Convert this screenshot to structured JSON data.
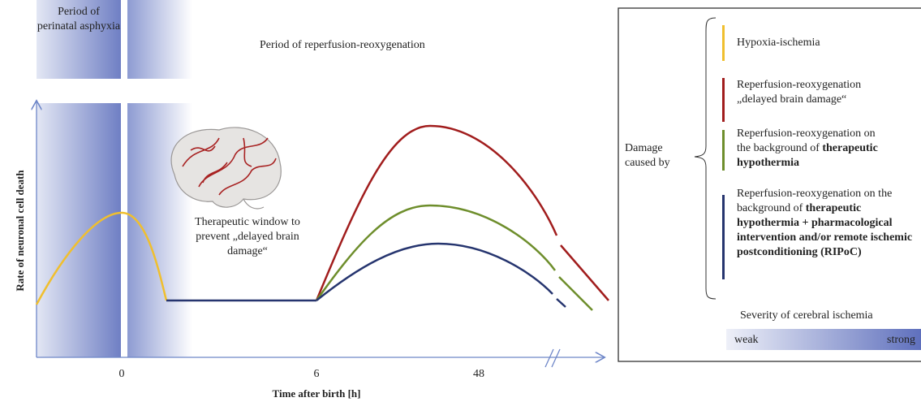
{
  "diagram": {
    "period_asphyxia": "Period of perinatal asphyxia",
    "period_reperfusion": "Period of reperfusion-reoxygenation",
    "therapeutic_window": "Therapeutic window to prevent „delayed brain damage“",
    "y_axis_label": "Rate of neuronal cell death",
    "x_axis_label": "Time after birth [h]",
    "x_ticks": [
      "0",
      "6",
      "48"
    ]
  },
  "legend": {
    "title": "Damage caused by",
    "items": [
      {
        "text": "Hypoxia-ischemia",
        "color": "#f0bf2e"
      },
      {
        "text": "Reperfusion-reoxygenation „delayed brain damage“",
        "color": "#a11d1d"
      },
      {
        "text": "Reperfusion-reoxygenation on the background of",
        "emphasis": "therapeutic hypothermia",
        "color": "#6e8e2c"
      },
      {
        "text": "Reperfusion-reoxygenation on the background of",
        "emphasis": "therapeutic hypothermia + pharmacological intervention and/or remote ischemic postconditioning (RIPoC)",
        "color": "#26356f"
      }
    ],
    "severity_title": "Severity of cerebral ischemia",
    "weak": "weak",
    "strong": "strong"
  }
}
